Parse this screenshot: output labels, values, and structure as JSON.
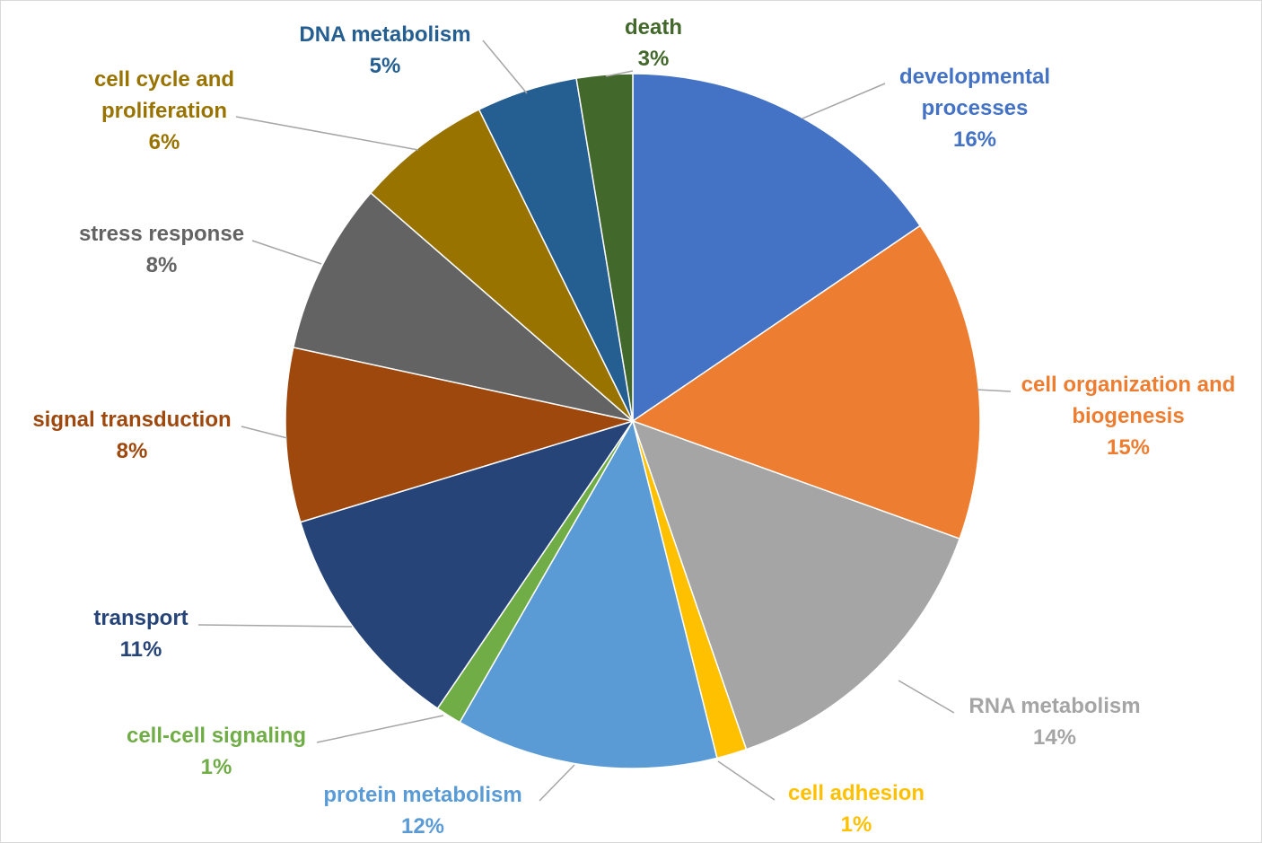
{
  "chart_data": {
    "type": "pie",
    "title": "",
    "start_angle_deg": 0,
    "direction": "clockwise",
    "legend": "none",
    "slices": [
      {
        "name_lines": [
          "developmental",
          "processes"
        ],
        "percent_label": "16%",
        "value": 15.5,
        "color": "#4472C4"
      },
      {
        "name_lines": [
          "cell organization and",
          "biogenesis"
        ],
        "percent_label": "15%",
        "value": 15.0,
        "color": "#ED7D31"
      },
      {
        "name_lines": [
          "RNA metabolism"
        ],
        "percent_label": "14%",
        "value": 14.2,
        "color": "#A5A5A5"
      },
      {
        "name_lines": [
          "cell adhesion"
        ],
        "percent_label": "1%",
        "value": 1.4,
        "color": "#FFC000"
      },
      {
        "name_lines": [
          "protein metabolism"
        ],
        "percent_label": "12%",
        "value": 12.2,
        "color": "#5B9BD5"
      },
      {
        "name_lines": [
          "cell-cell signaling"
        ],
        "percent_label": "1%",
        "value": 1.2,
        "color": "#70AD47"
      },
      {
        "name_lines": [
          "transport"
        ],
        "percent_label": "11%",
        "value": 10.8,
        "color": "#264478"
      },
      {
        "name_lines": [
          "signal transduction"
        ],
        "percent_label": "8%",
        "value": 8.1,
        "color": "#9E480E"
      },
      {
        "name_lines": [
          "stress response"
        ],
        "percent_label": "8%",
        "value": 8.0,
        "color": "#636363"
      },
      {
        "name_lines": [
          "cell cycle and",
          "proliferation"
        ],
        "percent_label": "6%",
        "value": 6.3,
        "color": "#997300"
      },
      {
        "name_lines": [
          "DNA metabolism"
        ],
        "percent_label": "5%",
        "value": 4.7,
        "color": "#255E91"
      },
      {
        "name_lines": [
          "death"
        ],
        "percent_label": "3%",
        "value": 2.6,
        "color": "#43682B"
      }
    ]
  }
}
